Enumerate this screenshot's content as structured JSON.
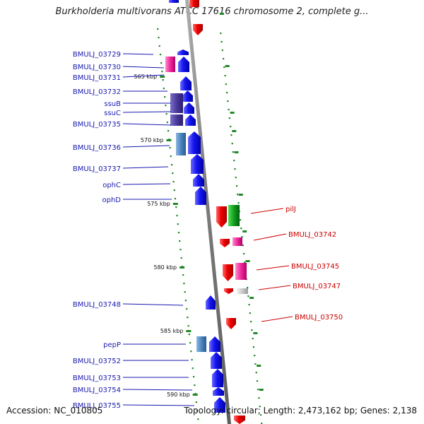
{
  "title": "Burkholderia multivorans ATCC 17616 chromosome 2, complete g...",
  "footer": {
    "accession": "Accession: NC_010805",
    "topology": "Topology: circular; Length: 2,473,162 bp; Genes: 2,138"
  },
  "scale_labels": [
    "565 kbp",
    "570 kbp",
    "575 kbp",
    "580 kbp",
    "585 kbp",
    "590 kbp"
  ],
  "gene_labels_left": [
    "BMULJ_03729",
    "BMULJ_03730",
    "BMULJ_03731",
    "BMULJ_03732",
    "ssuB",
    "ssuC",
    "BMULJ_03735",
    "BMULJ_03736",
    "BMULJ_03737",
    "ophC",
    "ophD",
    "BMULJ_03748",
    "pepP",
    "BMULJ_03752",
    "BMULJ_03753",
    "BMULJ_03754",
    "BMULJ_03755"
  ],
  "gene_labels_right": [
    "pilJ",
    "BMULJ_03742",
    "BMULJ_03745",
    "BMULJ_03747",
    "BMULJ_03750"
  ],
  "colors": {
    "forward_label": "#1a1ab0",
    "reverse_label": "#cc0000",
    "forward_gene": "#1010e0",
    "reverse_gene": "#e00000",
    "backbone": "#8a8a8a",
    "tick": "#22882a"
  }
}
